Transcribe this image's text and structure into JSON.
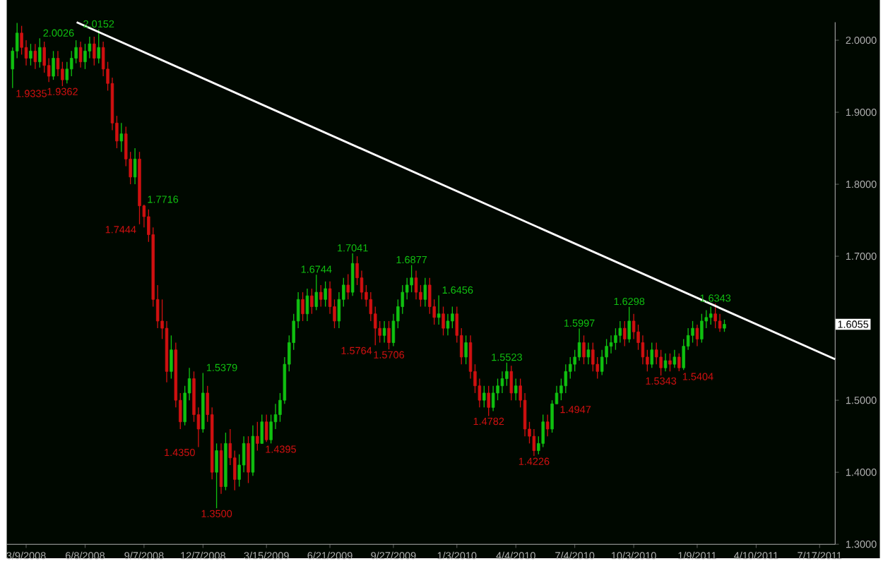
{
  "chart_data": {
    "type": "candlestick",
    "x": [
      "2008-02-17",
      "2008-02-24",
      "2008-03-02",
      "2008-03-09",
      "2008-03-16",
      "2008-03-23",
      "2008-03-30",
      "2008-04-06",
      "2008-04-13",
      "2008-04-20",
      "2008-04-27",
      "2008-05-04",
      "2008-05-11",
      "2008-05-18",
      "2008-05-25",
      "2008-06-01",
      "2008-06-08",
      "2008-06-15",
      "2008-06-22",
      "2008-06-29",
      "2008-07-06",
      "2008-07-13",
      "2008-07-20",
      "2008-07-27",
      "2008-08-03",
      "2008-08-10",
      "2008-08-17",
      "2008-08-24",
      "2008-08-31",
      "2008-09-07",
      "2008-09-14",
      "2008-09-21",
      "2008-09-28",
      "2008-10-05",
      "2008-10-12",
      "2008-10-19",
      "2008-10-26",
      "2008-11-02",
      "2008-11-09",
      "2008-11-16",
      "2008-11-23",
      "2008-11-30",
      "2008-12-07",
      "2008-12-14",
      "2008-12-21",
      "2008-12-28",
      "2009-01-04",
      "2009-01-11",
      "2009-01-18",
      "2009-01-25",
      "2009-02-01",
      "2009-02-08",
      "2009-02-15",
      "2009-02-22",
      "2009-03-01",
      "2009-03-08",
      "2009-03-15",
      "2009-03-22",
      "2009-03-29",
      "2009-04-05",
      "2009-04-12",
      "2009-04-19",
      "2009-04-26",
      "2009-05-03",
      "2009-05-10",
      "2009-05-17",
      "2009-05-24",
      "2009-05-31",
      "2009-06-07",
      "2009-06-14",
      "2009-06-21",
      "2009-06-28",
      "2009-07-05",
      "2009-07-12",
      "2009-07-19",
      "2009-07-26",
      "2009-08-02",
      "2009-08-09",
      "2009-08-16",
      "2009-08-23",
      "2009-08-30",
      "2009-09-06",
      "2009-09-13",
      "2009-09-20",
      "2009-09-27",
      "2009-10-04",
      "2009-10-11",
      "2009-10-18",
      "2009-10-25",
      "2009-11-01",
      "2009-11-08",
      "2009-11-15",
      "2009-11-22",
      "2009-11-29",
      "2009-12-06",
      "2009-12-13",
      "2009-12-20",
      "2009-12-27",
      "2010-01-03",
      "2010-01-10",
      "2010-01-17",
      "2010-01-24",
      "2010-01-31",
      "2010-02-07",
      "2010-02-14",
      "2010-02-21",
      "2010-02-28",
      "2010-03-07",
      "2010-03-14",
      "2010-03-21",
      "2010-03-28",
      "2010-04-04",
      "2010-04-11",
      "2010-04-18",
      "2010-04-25",
      "2010-05-02",
      "2010-05-09",
      "2010-05-16",
      "2010-05-23",
      "2010-05-30",
      "2010-06-06",
      "2010-06-13",
      "2010-06-20",
      "2010-06-27",
      "2010-07-04",
      "2010-07-11",
      "2010-07-18",
      "2010-07-25",
      "2010-08-01",
      "2010-08-08",
      "2010-08-15",
      "2010-08-22",
      "2010-08-29",
      "2010-09-05",
      "2010-09-12",
      "2010-09-19",
      "2010-09-26",
      "2010-10-03",
      "2010-10-10",
      "2010-10-17",
      "2010-10-24",
      "2010-10-31",
      "2010-11-07",
      "2010-11-14",
      "2010-11-21",
      "2010-11-28",
      "2010-12-05",
      "2010-12-12",
      "2010-12-19",
      "2010-12-26",
      "2011-01-02",
      "2011-01-09",
      "2011-01-16",
      "2011-01-23",
      "2011-01-30",
      "2011-02-06",
      "2011-02-13",
      "2011-02-20"
    ],
    "ohlc": [
      [
        1.96,
        1.99,
        1.9335,
        1.985
      ],
      [
        1.985,
        2.024,
        1.975,
        2.01
      ],
      [
        2.01,
        2.02,
        1.98,
        1.99
      ],
      [
        1.99,
        2.0,
        1.965,
        1.975
      ],
      [
        1.975,
        1.995,
        1.965,
        1.985
      ],
      [
        1.985,
        1.995,
        1.96,
        1.97
      ],
      [
        1.97,
        2.0026,
        1.962,
        1.99
      ],
      [
        1.99,
        1.998,
        1.955,
        1.965
      ],
      [
        1.965,
        1.975,
        1.942,
        1.95
      ],
      [
        1.95,
        1.985,
        1.945,
        1.975
      ],
      [
        1.975,
        1.985,
        1.95,
        1.96
      ],
      [
        1.96,
        1.97,
        1.9362,
        1.945
      ],
      [
        1.945,
        1.97,
        1.94,
        1.96
      ],
      [
        1.96,
        1.985,
        1.95,
        1.975
      ],
      [
        1.975,
        2.0,
        1.968,
        1.99
      ],
      [
        1.99,
        1.998,
        1.962,
        1.97
      ],
      [
        1.97,
        1.995,
        1.96,
        1.985
      ],
      [
        1.985,
        2.005,
        1.975,
        1.995
      ],
      [
        1.995,
        2.005,
        1.965,
        1.975
      ],
      [
        1.975,
        2.0152,
        1.968,
        1.99
      ],
      [
        1.99,
        1.998,
        1.95,
        1.96
      ],
      [
        1.96,
        1.97,
        1.93,
        1.94
      ],
      [
        1.94,
        1.948,
        1.875,
        1.885
      ],
      [
        1.885,
        1.895,
        1.85,
        1.86
      ],
      [
        1.86,
        1.885,
        1.845,
        1.87
      ],
      [
        1.87,
        1.88,
        1.825,
        1.835
      ],
      [
        1.835,
        1.845,
        1.8,
        1.81
      ],
      [
        1.81,
        1.85,
        1.8,
        1.835
      ],
      [
        1.835,
        1.845,
        1.7444,
        1.77
      ],
      [
        1.77,
        1.7716,
        1.74,
        1.755
      ],
      [
        1.755,
        1.765,
        1.72,
        1.73
      ],
      [
        1.73,
        1.74,
        1.63,
        1.64
      ],
      [
        1.64,
        1.66,
        1.6,
        1.61
      ],
      [
        1.61,
        1.64,
        1.585,
        1.6
      ],
      [
        1.6,
        1.61,
        1.525,
        1.54
      ],
      [
        1.54,
        1.59,
        1.53,
        1.57
      ],
      [
        1.57,
        1.58,
        1.49,
        1.5
      ],
      [
        1.5,
        1.51,
        1.46,
        1.47
      ],
      [
        1.47,
        1.52,
        1.465,
        1.51
      ],
      [
        1.51,
        1.545,
        1.5,
        1.53
      ],
      [
        1.53,
        1.54,
        1.47,
        1.48
      ],
      [
        1.48,
        1.49,
        1.435,
        1.46
      ],
      [
        1.46,
        1.5379,
        1.455,
        1.51
      ],
      [
        1.51,
        1.52,
        1.47,
        1.48
      ],
      [
        1.48,
        1.49,
        1.39,
        1.4
      ],
      [
        1.4,
        1.44,
        1.35,
        1.43
      ],
      [
        1.43,
        1.44,
        1.37,
        1.38
      ],
      [
        1.38,
        1.455,
        1.375,
        1.44
      ],
      [
        1.44,
        1.46,
        1.41,
        1.42
      ],
      [
        1.42,
        1.43,
        1.375,
        1.39
      ],
      [
        1.39,
        1.425,
        1.38,
        1.41
      ],
      [
        1.41,
        1.45,
        1.4,
        1.44
      ],
      [
        1.44,
        1.45,
        1.385,
        1.4
      ],
      [
        1.4,
        1.465,
        1.395,
        1.45
      ],
      [
        1.45,
        1.47,
        1.43,
        1.44
      ],
      [
        1.44,
        1.48,
        1.4395,
        1.47
      ],
      [
        1.47,
        1.48,
        1.442,
        1.445
      ],
      [
        1.445,
        1.48,
        1.44,
        1.47
      ],
      [
        1.47,
        1.495,
        1.46,
        1.48
      ],
      [
        1.48,
        1.51,
        1.47,
        1.5
      ],
      [
        1.5,
        1.56,
        1.495,
        1.55
      ],
      [
        1.55,
        1.59,
        1.54,
        1.58
      ],
      [
        1.58,
        1.62,
        1.57,
        1.61
      ],
      [
        1.61,
        1.65,
        1.6,
        1.64
      ],
      [
        1.64,
        1.65,
        1.61,
        1.62
      ],
      [
        1.62,
        1.655,
        1.61,
        1.645
      ],
      [
        1.645,
        1.655,
        1.62,
        1.63
      ],
      [
        1.63,
        1.6744,
        1.625,
        1.65
      ],
      [
        1.65,
        1.66,
        1.63,
        1.64
      ],
      [
        1.64,
        1.665,
        1.63,
        1.655
      ],
      [
        1.655,
        1.665,
        1.62,
        1.63
      ],
      [
        1.63,
        1.64,
        1.6,
        1.61
      ],
      [
        1.61,
        1.65,
        1.6,
        1.64
      ],
      [
        1.64,
        1.67,
        1.63,
        1.66
      ],
      [
        1.66,
        1.675,
        1.64,
        1.65
      ],
      [
        1.65,
        1.7041,
        1.645,
        1.69
      ],
      [
        1.69,
        1.7,
        1.66,
        1.67
      ],
      [
        1.67,
        1.68,
        1.64,
        1.65
      ],
      [
        1.65,
        1.66,
        1.63,
        1.64
      ],
      [
        1.64,
        1.65,
        1.61,
        1.62
      ],
      [
        1.62,
        1.63,
        1.5764,
        1.6
      ],
      [
        1.6,
        1.61,
        1.58,
        1.59
      ],
      [
        1.59,
        1.61,
        1.58,
        1.6
      ],
      [
        1.6,
        1.61,
        1.5706,
        1.58
      ],
      [
        1.58,
        1.62,
        1.575,
        1.61
      ],
      [
        1.61,
        1.64,
        1.6,
        1.63
      ],
      [
        1.63,
        1.66,
        1.62,
        1.65
      ],
      [
        1.65,
        1.67,
        1.64,
        1.66
      ],
      [
        1.66,
        1.6877,
        1.65,
        1.67
      ],
      [
        1.67,
        1.68,
        1.64,
        1.65
      ],
      [
        1.65,
        1.66,
        1.63,
        1.64
      ],
      [
        1.64,
        1.67,
        1.63,
        1.66
      ],
      [
        1.66,
        1.67,
        1.62,
        1.63
      ],
      [
        1.63,
        1.64,
        1.605,
        1.615
      ],
      [
        1.615,
        1.6456,
        1.605,
        1.62
      ],
      [
        1.62,
        1.63,
        1.59,
        1.6
      ],
      [
        1.6,
        1.62,
        1.59,
        1.61
      ],
      [
        1.61,
        1.63,
        1.6,
        1.62
      ],
      [
        1.62,
        1.63,
        1.58,
        1.59
      ],
      [
        1.59,
        1.6,
        1.55,
        1.56
      ],
      [
        1.56,
        1.59,
        1.55,
        1.58
      ],
      [
        1.58,
        1.59,
        1.53,
        1.54
      ],
      [
        1.54,
        1.55,
        1.51,
        1.52
      ],
      [
        1.52,
        1.53,
        1.49,
        1.5
      ],
      [
        1.5,
        1.52,
        1.49,
        1.51
      ],
      [
        1.51,
        1.52,
        1.4782,
        1.49
      ],
      [
        1.49,
        1.52,
        1.485,
        1.51
      ],
      [
        1.51,
        1.53,
        1.5,
        1.52
      ],
      [
        1.52,
        1.54,
        1.51,
        1.53
      ],
      [
        1.53,
        1.5523,
        1.52,
        1.54
      ],
      [
        1.54,
        1.548,
        1.5,
        1.51
      ],
      [
        1.51,
        1.53,
        1.5,
        1.52
      ],
      [
        1.52,
        1.53,
        1.49,
        1.5
      ],
      [
        1.5,
        1.51,
        1.45,
        1.46
      ],
      [
        1.46,
        1.47,
        1.44,
        1.45
      ],
      [
        1.45,
        1.46,
        1.4226,
        1.43
      ],
      [
        1.43,
        1.45,
        1.425,
        1.44
      ],
      [
        1.44,
        1.48,
        1.435,
        1.47
      ],
      [
        1.47,
        1.48,
        1.45,
        1.46
      ],
      [
        1.46,
        1.5,
        1.455,
        1.495
      ],
      [
        1.495,
        1.52,
        1.4947,
        1.51
      ],
      [
        1.51,
        1.53,
        1.5,
        1.52
      ],
      [
        1.52,
        1.55,
        1.51,
        1.54
      ],
      [
        1.54,
        1.56,
        1.53,
        1.55
      ],
      [
        1.55,
        1.57,
        1.54,
        1.56
      ],
      [
        1.56,
        1.5997,
        1.555,
        1.58
      ],
      [
        1.58,
        1.59,
        1.55,
        1.56
      ],
      [
        1.56,
        1.58,
        1.55,
        1.57
      ],
      [
        1.57,
        1.58,
        1.54,
        1.55
      ],
      [
        1.55,
        1.56,
        1.53,
        1.54
      ],
      [
        1.54,
        1.57,
        1.535,
        1.56
      ],
      [
        1.56,
        1.585,
        1.55,
        1.575
      ],
      [
        1.575,
        1.59,
        1.565,
        1.58
      ],
      [
        1.58,
        1.6,
        1.57,
        1.59
      ],
      [
        1.59,
        1.61,
        1.58,
        1.6
      ],
      [
        1.6,
        1.61,
        1.575,
        1.585
      ],
      [
        1.585,
        1.6298,
        1.58,
        1.61
      ],
      [
        1.61,
        1.62,
        1.585,
        1.595
      ],
      [
        1.595,
        1.605,
        1.57,
        1.58
      ],
      [
        1.58,
        1.59,
        1.55,
        1.56
      ],
      [
        1.56,
        1.57,
        1.54,
        1.55
      ],
      [
        1.55,
        1.58,
        1.545,
        1.57
      ],
      [
        1.57,
        1.58,
        1.55,
        1.56
      ],
      [
        1.56,
        1.57,
        1.5343,
        1.545
      ],
      [
        1.545,
        1.565,
        1.54,
        1.555
      ],
      [
        1.555,
        1.565,
        1.54,
        1.55
      ],
      [
        1.55,
        1.57,
        1.545,
        1.56
      ],
      [
        1.56,
        1.565,
        1.5404,
        1.545
      ],
      [
        1.545,
        1.585,
        1.542,
        1.575
      ],
      [
        1.575,
        1.6,
        1.57,
        1.59
      ],
      [
        1.59,
        1.61,
        1.58,
        1.6
      ],
      [
        1.6,
        1.605,
        1.575,
        1.585
      ],
      [
        1.585,
        1.62,
        1.58,
        1.61
      ],
      [
        1.61,
        1.625,
        1.6,
        1.615
      ],
      [
        1.615,
        1.63,
        1.605,
        1.62
      ],
      [
        1.62,
        1.6343,
        1.6,
        1.61
      ],
      [
        1.61,
        1.62,
        1.595,
        1.6
      ],
      [
        1.6,
        1.612,
        1.595,
        1.6055
      ]
    ],
    "series": [
      {
        "type": "line",
        "x": [
          "2008-05-26",
          "2011-08-10"
        ],
        "values": [
          2.025,
          1.557
        ],
        "color": "#ffffff"
      }
    ],
    "xlim": [
      "2008-02-08",
      "2011-08-10"
    ],
    "xticks": [
      {
        "value": "2008-03-09",
        "label": "3/9/2008"
      },
      {
        "value": "2008-06-08",
        "label": "6/8/2008"
      },
      {
        "value": "2008-09-07",
        "label": "9/7/2008"
      },
      {
        "value": "2008-12-07",
        "label": "12/7/2008"
      },
      {
        "value": "2009-03-15",
        "label": "3/15/2009"
      },
      {
        "value": "2009-06-21",
        "label": "6/21/2009"
      },
      {
        "value": "2009-09-27",
        "label": "9/27/2009"
      },
      {
        "value": "2010-01-03",
        "label": "1/3/2010"
      },
      {
        "value": "2010-04-04",
        "label": "4/4/2010"
      },
      {
        "value": "2010-07-04",
        "label": "7/4/2010"
      },
      {
        "value": "2010-10-03",
        "label": "10/3/2010"
      },
      {
        "value": "2011-01-09",
        "label": "1/9/2011"
      },
      {
        "value": "2011-04-10",
        "label": "4/10/2011"
      },
      {
        "value": "2011-07-17",
        "label": "7/17/2011"
      }
    ],
    "ylim": [
      1.3,
      2.025
    ],
    "yticks": [
      {
        "value": 1.3,
        "label": "1.3000"
      },
      {
        "value": 1.4,
        "label": "1.4000"
      },
      {
        "value": 1.5,
        "label": "1.5000"
      },
      {
        "value": 1.6,
        "label": null
      },
      {
        "value": 1.7,
        "label": "1.7000"
      },
      {
        "value": 1.8,
        "label": "1.8000"
      },
      {
        "value": 1.9,
        "label": "1.9000"
      },
      {
        "value": 2.0,
        "label": "2.0000"
      }
    ],
    "annotations": [
      {
        "text": "1.9335",
        "x": "2008-02-17",
        "y": 1.9335
      },
      {
        "text": "2.0026",
        "x": "2008-03-30",
        "y": 2.0026
      },
      {
        "text": "1.9362",
        "x": "2008-05-04",
        "y": 1.9362
      },
      {
        "text": "2.0152",
        "x": "2008-06-29",
        "y": 2.0152
      },
      {
        "text": "1.7444",
        "x": "2008-08-31",
        "y": 1.7444
      },
      {
        "text": "1.7716",
        "x": "2008-09-07",
        "y": 1.7716
      },
      {
        "text": "1.4350",
        "x": "2008-11-30",
        "y": 1.435
      },
      {
        "text": "1.5379",
        "x": "2008-12-07",
        "y": 1.5379
      },
      {
        "text": "1.3500",
        "x": "2008-12-28",
        "y": 1.35
      },
      {
        "text": "1.6744",
        "x": "2009-05-31",
        "y": 1.6744
      },
      {
        "text": "1.4395",
        "x": "2009-03-08",
        "y": 1.4395
      },
      {
        "text": "1.7041",
        "x": "2009-07-26",
        "y": 1.7041
      },
      {
        "text": "1.5764",
        "x": "2009-08-30",
        "y": 1.5764
      },
      {
        "text": "1.6877",
        "x": "2009-10-25",
        "y": 1.6877
      },
      {
        "text": "1.5706",
        "x": "2009-09-20",
        "y": 1.5706
      },
      {
        "text": "1.6456",
        "x": "2009-12-06",
        "y": 1.6456
      },
      {
        "text": "1.4782",
        "x": "2010-02-21",
        "y": 1.4782
      },
      {
        "text": "1.5523",
        "x": "2010-03-21",
        "y": 1.5523
      },
      {
        "text": "1.4226",
        "x": "2010-05-02",
        "y": 1.4226
      },
      {
        "text": "1.5997",
        "x": "2010-07-11",
        "y": 1.5997
      },
      {
        "text": "1.4947",
        "x": "2010-06-06",
        "y": 1.4947
      },
      {
        "text": "1.6298",
        "x": "2010-09-26",
        "y": 1.6298
      },
      {
        "text": "1.5343",
        "x": "2010-11-14",
        "y": 1.5343
      },
      {
        "text": "1.6343",
        "x": "2011-02-06",
        "y": 1.6343
      },
      {
        "text": "1.5404",
        "x": "2010-12-12",
        "y": 1.5404
      },
      {
        "text": "1.6055",
        "y": 1.6055
      }
    ]
  }
}
